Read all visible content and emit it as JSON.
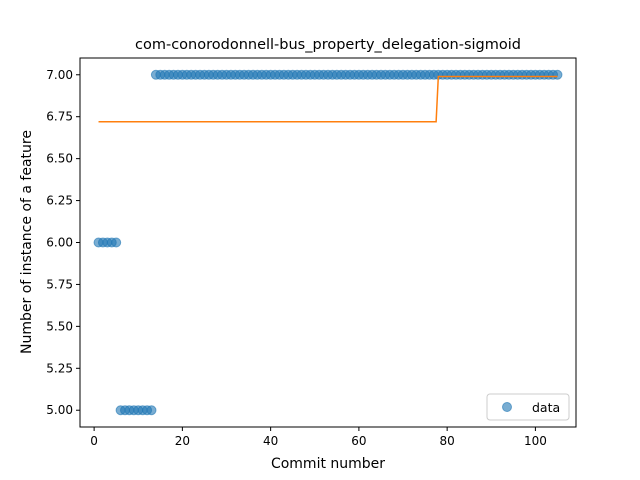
{
  "chart_data": {
    "type": "scatter",
    "title": "com-conorodonnell-bus_property_delegation-sigmoid",
    "xlabel": "Commit number",
    "ylabel": "Number of instance of a feature",
    "xlim": [
      -3.2,
      109.2
    ],
    "ylim": [
      4.9,
      7.1
    ],
    "xticks": [
      0,
      20,
      40,
      60,
      80,
      100
    ],
    "yticks": [
      5.0,
      5.25,
      5.5,
      5.75,
      6.0,
      6.25,
      6.5,
      6.75,
      7.0
    ],
    "ytick_labels": [
      "5.00",
      "5.25",
      "5.50",
      "5.75",
      "6.00",
      "6.25",
      "6.50",
      "6.75",
      "7.00"
    ],
    "grid": false,
    "legend": {
      "position": "lower-right",
      "entries": [
        "data"
      ]
    },
    "series": [
      {
        "name": "data",
        "kind": "scatter",
        "color": "#1f77b4",
        "segments": [
          {
            "x_start": 1,
            "x_end": 5,
            "y": 6.0
          },
          {
            "x_start": 6,
            "x_end": 13,
            "y": 5.0
          },
          {
            "x_start": 14,
            "x_end": 105,
            "y": 7.0
          }
        ]
      },
      {
        "kind": "line",
        "color": "#ff7f0e",
        "points": [
          [
            1,
            6.72
          ],
          [
            77.5,
            6.72
          ],
          [
            78,
            6.99
          ],
          [
            105,
            6.99
          ]
        ]
      }
    ]
  }
}
